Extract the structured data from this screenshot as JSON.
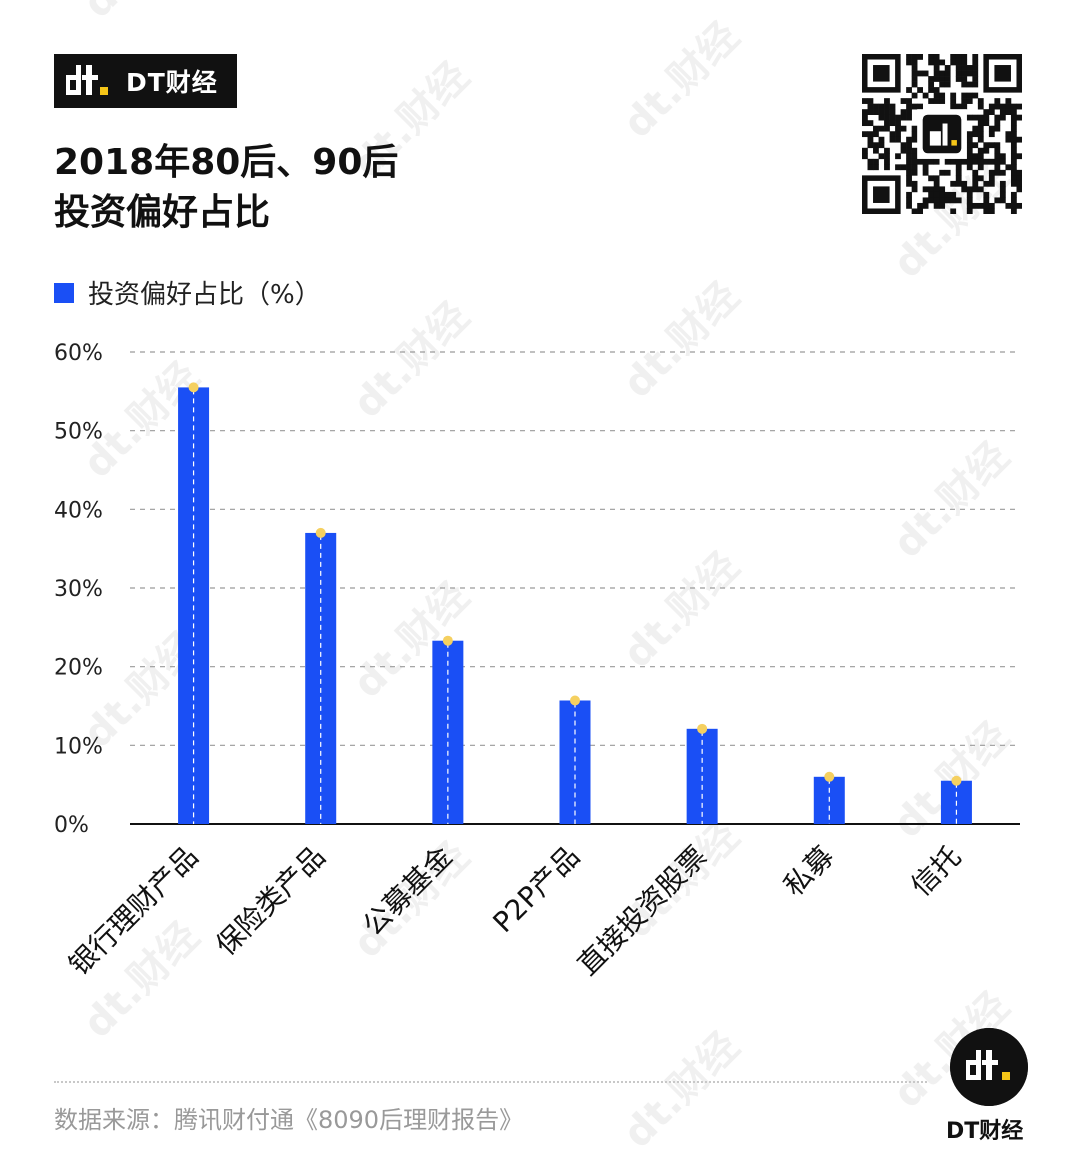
{
  "brand": {
    "name": "DT财经",
    "logo_text": "dt"
  },
  "title_lines": [
    "2018年80后、90后",
    "投资偏好占比"
  ],
  "legend": {
    "label": "投资偏好占比（%）",
    "color": "#1a4ff5"
  },
  "chart_data": {
    "type": "bar",
    "categories": [
      "银行理财产品",
      "保险类产品",
      "公募基金",
      "P2P产品",
      "直接投资股票",
      "私募",
      "信托"
    ],
    "series": [
      {
        "name": "投资偏好占比（%）",
        "values": [
          55.5,
          37.0,
          23.3,
          15.7,
          12.1,
          6.0,
          5.5
        ]
      }
    ],
    "ylim": [
      0,
      60
    ],
    "yticks": [
      "0%",
      "10%",
      "20%",
      "30%",
      "40%",
      "50%",
      "60%"
    ],
    "grid": true,
    "bar_color": "#1a4ff5",
    "marker_color": "#f5d060"
  },
  "footer": {
    "source": "数据来源：腾讯财付通《8090后理财报告》",
    "logo_caption": "DT财经"
  },
  "watermark_text": "dt.财经"
}
